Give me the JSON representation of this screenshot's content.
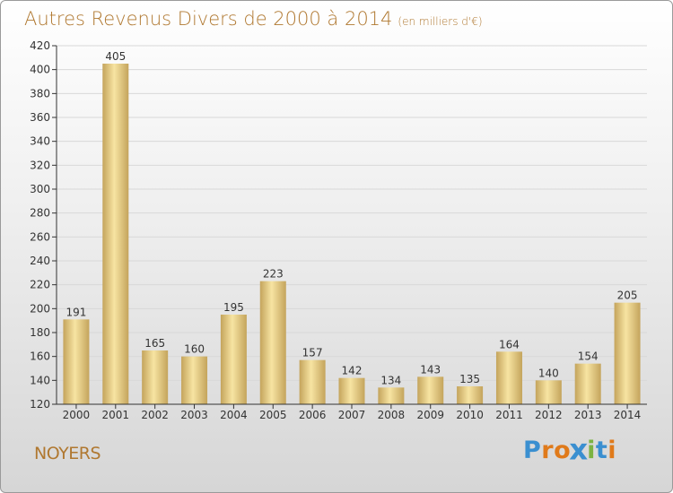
{
  "title": "Autres Revenus Divers de 2000 à 2014",
  "subtitle": "(en milliers d'€)",
  "commune": "NOYERS",
  "logo": {
    "letters": [
      "P",
      "r",
      "o",
      "x",
      "i",
      "t",
      "i"
    ],
    "colors": [
      "#3a8fd0",
      "#e07a1a",
      "#e07a1a",
      "#3a8fd0",
      "#7cb342",
      "#3a8fd0",
      "#e07a1a"
    ]
  },
  "colors": {
    "text": "#b07830",
    "bar_light": "#f7e4a2",
    "bar_dark": "#c4a45c",
    "grid": "#d8d8d8"
  },
  "chart_data": {
    "type": "bar",
    "title": "Autres Revenus Divers de 2000 à 2014",
    "subtitle": "(en milliers d'€)",
    "categories": [
      "2000",
      "2001",
      "2002",
      "2003",
      "2004",
      "2005",
      "2006",
      "2007",
      "2008",
      "2009",
      "2010",
      "2011",
      "2012",
      "2013",
      "2014"
    ],
    "values": [
      191,
      405,
      165,
      160,
      195,
      223,
      157,
      142,
      134,
      143,
      135,
      164,
      140,
      154,
      205
    ],
    "ylim": [
      120,
      420
    ],
    "yticks": [
      120,
      140,
      160,
      180,
      200,
      220,
      240,
      260,
      280,
      300,
      320,
      340,
      360,
      380,
      400,
      420
    ],
    "grid": true,
    "data_labels": true
  }
}
